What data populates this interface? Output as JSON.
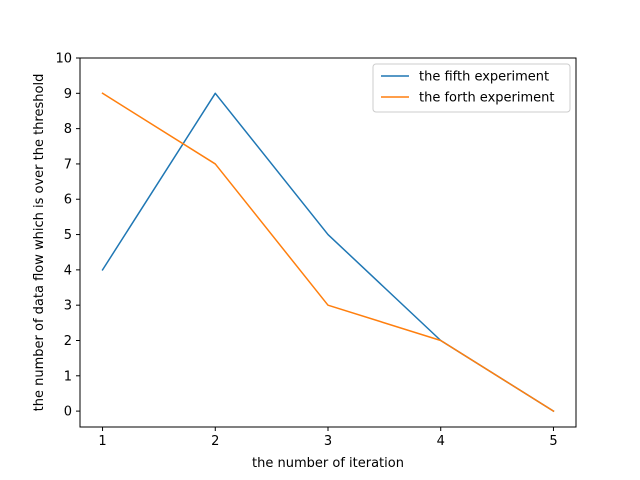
{
  "chart_data": {
    "type": "line",
    "title": "",
    "xlabel": "the number of iteration",
    "ylabel": "the number of data flow which is over the threshold",
    "x": [
      1,
      2,
      3,
      4,
      5
    ],
    "xticks": [
      1,
      2,
      3,
      4,
      5
    ],
    "yticks": [
      0,
      1,
      2,
      3,
      4,
      5,
      6,
      7,
      8,
      9,
      10
    ],
    "xlim": [
      0.8,
      5.2
    ],
    "ylim": [
      -0.45,
      10
    ],
    "grid": false,
    "legend_position": "upper right",
    "series": [
      {
        "name": "the fifth experiment",
        "color": "#1f77b4",
        "values": [
          4,
          9,
          5,
          2,
          0
        ]
      },
      {
        "name": "the forth experiment",
        "color": "#ff7f0e",
        "values": [
          9,
          7,
          3,
          2,
          0
        ]
      }
    ]
  }
}
